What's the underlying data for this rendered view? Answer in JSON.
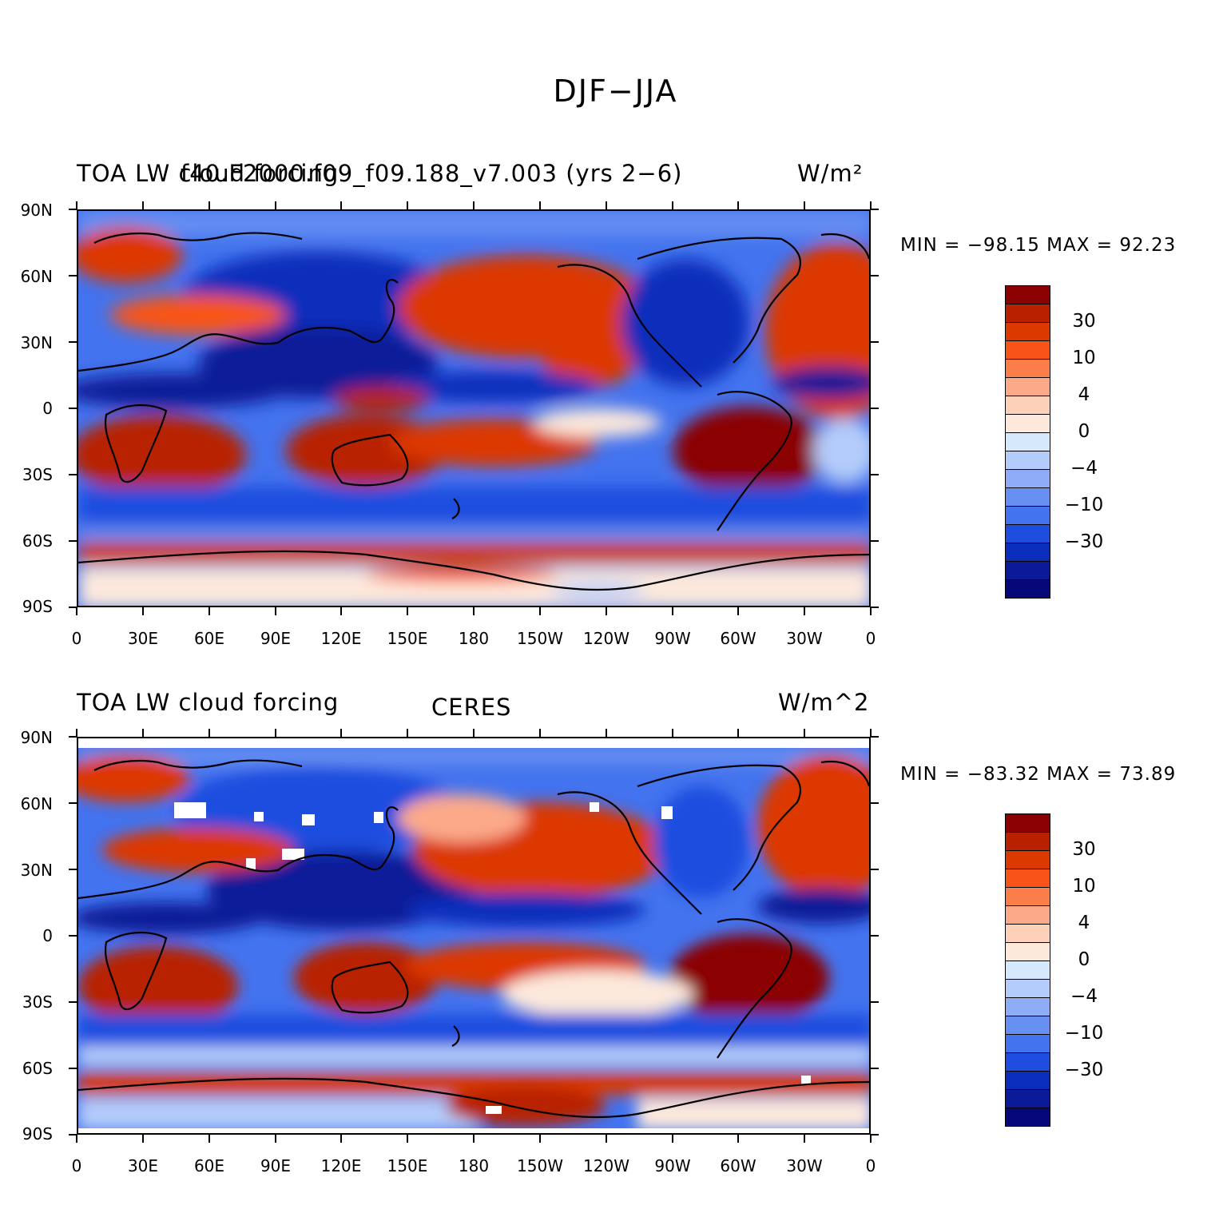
{
  "figure": {
    "title": "DJF−JJA"
  },
  "panels": [
    {
      "id": "model",
      "left_title": "TOA LW cloud forcing",
      "center_title": "f40.F2000.f09_f09.188_v7.003 (yrs 2−6)",
      "units": "W/m²",
      "min_label": "MIN = −98.15",
      "max_label": "MAX =  92.23"
    },
    {
      "id": "obs",
      "left_title": "TOA LW cloud forcing",
      "center_title": "CERES",
      "units": "W/m^2",
      "min_label": "MIN = −83.32",
      "max_label": "MAX =  73.89"
    }
  ],
  "axes": {
    "lat_labels": [
      "90N",
      "60N",
      "30N",
      "0",
      "30S",
      "60S",
      "90S"
    ],
    "lon_labels": [
      "0",
      "30E",
      "60E",
      "90E",
      "120E",
      "150E",
      "180",
      "150W",
      "120W",
      "90W",
      "60W",
      "30W",
      "0"
    ]
  },
  "colorbar": {
    "colors": [
      "#8b0000",
      "#b82000",
      "#dc3900",
      "#f85418",
      "#fb7d4a",
      "#fca98a",
      "#fdd0ba",
      "#fde9dc",
      "#d6e8fc",
      "#b4ccfa",
      "#8eadf6",
      "#6890f2",
      "#4373ee",
      "#1e4ddf",
      "#0a2dbb",
      "#0a1a98",
      "#06087a"
    ],
    "labels": [
      "30",
      "10",
      "4",
      "0",
      "−4",
      "−10",
      "−30"
    ]
  },
  "chart_data": {
    "type": "heatmap",
    "title": "DJF−JJA",
    "variable": "TOA LW cloud forcing",
    "units": "W/m^2",
    "levels": [
      -40,
      -30,
      -20,
      -15,
      -10,
      -6,
      -4,
      -2,
      0,
      2,
      4,
      6,
      10,
      15,
      20,
      30,
      40
    ],
    "panels": [
      {
        "name": "f40.F2000.f09_f09.188_v7.003 (yrs 2−6)",
        "min": -98.15,
        "max": 92.23
      },
      {
        "name": "CERES",
        "min": -83.32,
        "max": 73.89
      }
    ],
    "xlim": [
      0,
      360
    ],
    "ylim": [
      -90,
      90
    ]
  }
}
